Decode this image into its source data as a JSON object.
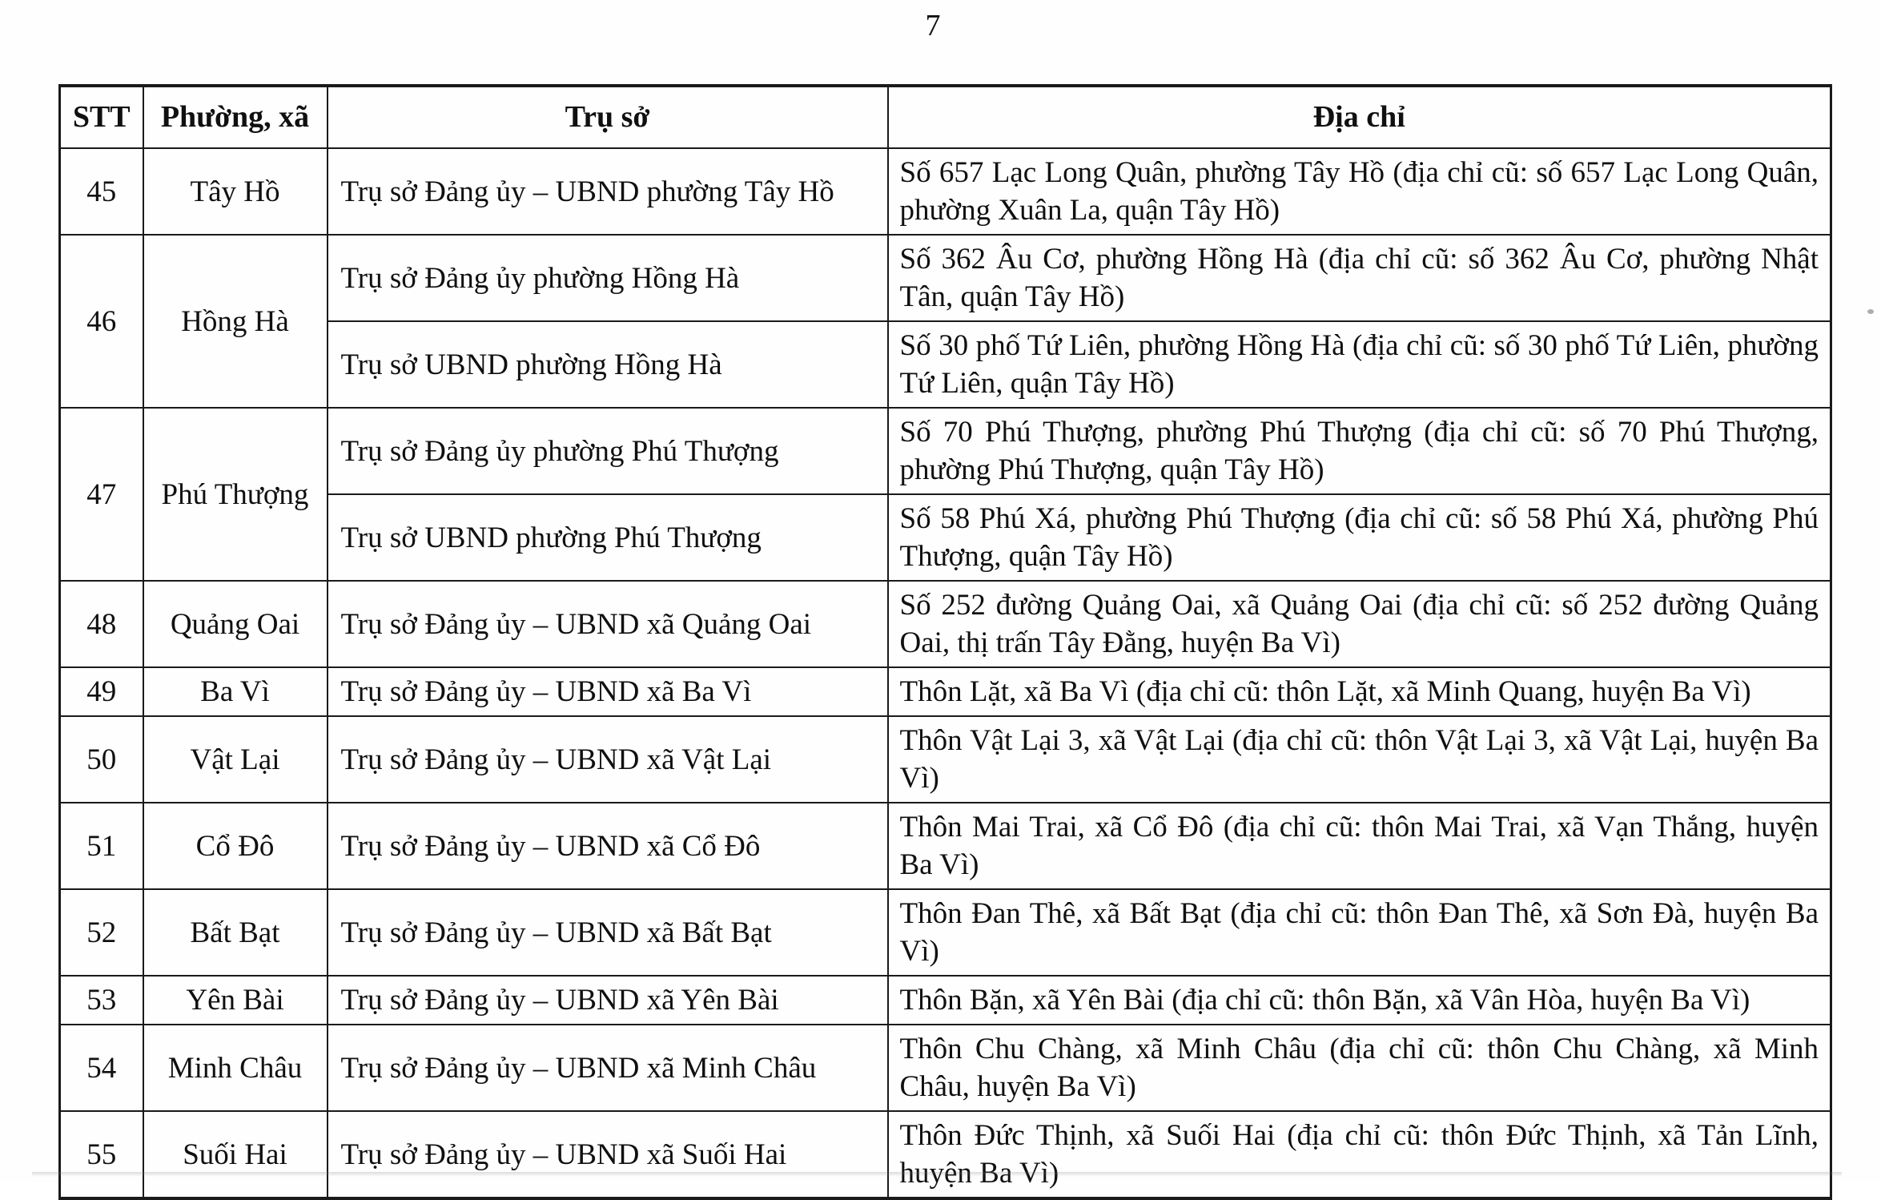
{
  "page": {
    "number": "7"
  },
  "table": {
    "headers": {
      "stt": "STT",
      "ward": "Phường, xã",
      "office": "Trụ sở",
      "address": "Địa chỉ"
    },
    "rows": [
      {
        "stt": "45",
        "ward": "Tây Hồ",
        "entries": [
          {
            "office": "Trụ sở Đảng ủy – UBND phường Tây Hồ",
            "address": "Số 657 Lạc Long Quân, phường Tây Hồ (địa chỉ cũ: số 657 Lạc Long Quân, phường Xuân La, quận Tây Hồ)"
          }
        ]
      },
      {
        "stt": "46",
        "ward": "Hồng Hà",
        "entries": [
          {
            "office": "Trụ sở Đảng ủy phường Hồng Hà",
            "address": "Số 362 Âu Cơ, phường Hồng Hà (địa chỉ cũ: số 362 Âu Cơ, phường Nhật Tân, quận Tây Hồ)"
          },
          {
            "office": "Trụ sở UBND phường Hồng Hà",
            "address": "Số 30 phố Tứ Liên, phường Hồng Hà (địa chỉ cũ: số 30 phố Tứ Liên, phường Tứ Liên, quận Tây Hồ)"
          }
        ]
      },
      {
        "stt": "47",
        "ward": "Phú Thượng",
        "entries": [
          {
            "office": "Trụ sở Đảng ủy phường Phú Thượng",
            "address": "Số 70 Phú Thượng, phường Phú Thượng (địa chỉ cũ: số 70 Phú Thượng, phường Phú Thượng, quận Tây Hồ)"
          },
          {
            "office": "Trụ sở UBND phường Phú Thượng",
            "address": "Số 58 Phú Xá, phường Phú Thượng (địa chỉ cũ: số 58 Phú Xá, phường Phú Thượng, quận Tây Hồ)"
          }
        ]
      },
      {
        "stt": "48",
        "ward": "Quảng Oai",
        "entries": [
          {
            "office": "Trụ sở Đảng ủy – UBND xã Quảng Oai",
            "address": "Số 252 đường Quảng Oai, xã Quảng Oai (địa chỉ cũ: số 252 đường Quảng Oai, thị trấn Tây Đằng, huyện Ba Vì)"
          }
        ]
      },
      {
        "stt": "49",
        "ward": "Ba Vì",
        "entries": [
          {
            "office": "Trụ sở Đảng ủy – UBND xã Ba Vì",
            "address": "Thôn Lặt, xã Ba Vì (địa chỉ cũ: thôn Lặt, xã Minh Quang, huyện Ba Vì)"
          }
        ]
      },
      {
        "stt": "50",
        "ward": "Vật Lại",
        "entries": [
          {
            "office": "Trụ sở Đảng ủy – UBND xã Vật Lại",
            "address": "Thôn Vật Lại 3, xã Vật Lại (địa chỉ cũ: thôn Vật Lại 3, xã Vật Lại, huyện Ba Vì)"
          }
        ]
      },
      {
        "stt": "51",
        "ward": "Cổ Đô",
        "entries": [
          {
            "office": "Trụ sở Đảng ủy – UBND xã Cổ Đô",
            "address": "Thôn Mai Trai, xã Cổ Đô (địa chỉ cũ: thôn Mai Trai, xã Vạn Thắng, huyện Ba Vì)"
          }
        ]
      },
      {
        "stt": "52",
        "ward": "Bất Bạt",
        "entries": [
          {
            "office": "Trụ sở Đảng ủy – UBND xã Bất Bạt",
            "address": "Thôn Đan Thê, xã Bất Bạt (địa chỉ cũ: thôn Đan Thê, xã Sơn Đà, huyện Ba Vì)"
          }
        ]
      },
      {
        "stt": "53",
        "ward": "Yên Bài",
        "entries": [
          {
            "office": "Trụ sở Đảng ủy – UBND xã Yên Bài",
            "address": "Thôn Bặn, xã Yên Bài (địa chỉ cũ: thôn Bặn, xã Vân Hòa, huyện Ba Vì)"
          }
        ]
      },
      {
        "stt": "54",
        "ward": "Minh Châu",
        "entries": [
          {
            "office": "Trụ sở Đảng ủy – UBND xã Minh Châu",
            "address": "Thôn Chu Chàng, xã Minh Châu (địa chỉ cũ: thôn Chu Chàng, xã Minh Châu, huyện Ba Vì)"
          }
        ]
      },
      {
        "stt": "55",
        "ward": "Suối Hai",
        "entries": [
          {
            "office": "Trụ sở Đảng ủy – UBND xã Suối Hai",
            "address": "Thôn Đức Thịnh, xã Suối Hai (địa chỉ cũ: thôn Đức Thịnh, xã Tản Lĩnh, huyện Ba Vì)"
          }
        ]
      }
    ]
  }
}
